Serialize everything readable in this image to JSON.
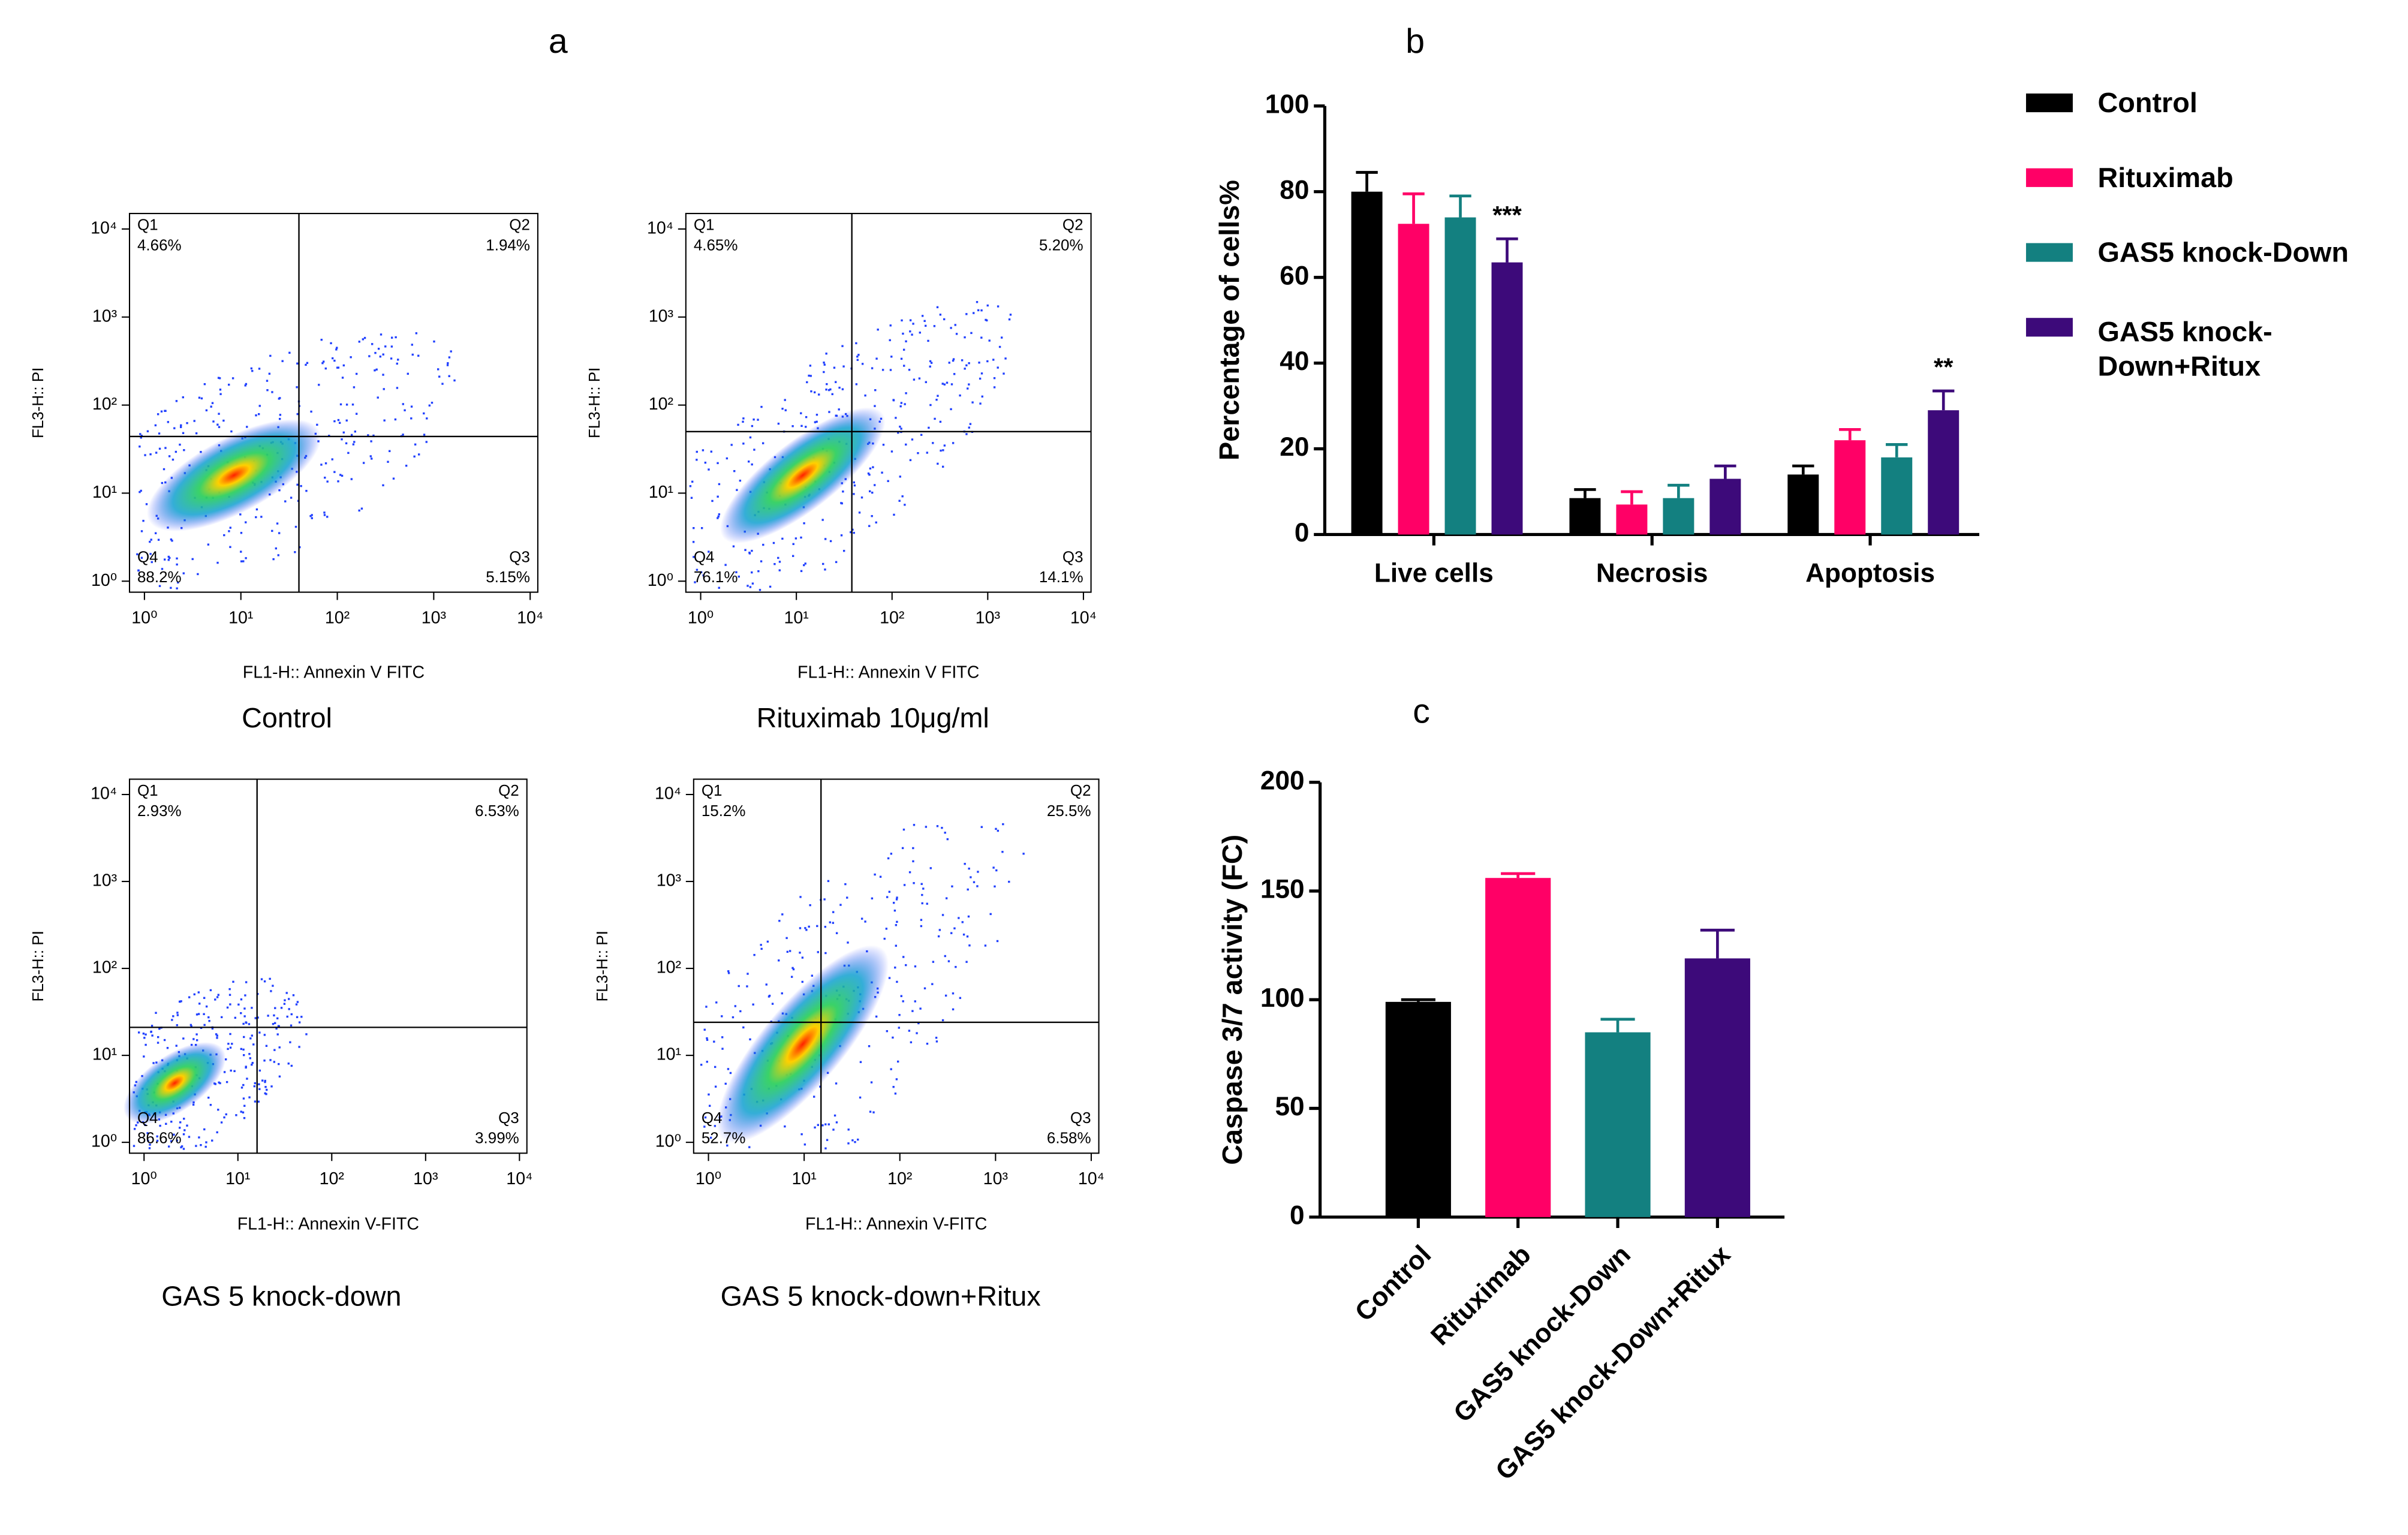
{
  "panel_labels": [
    "a",
    "b",
    "c"
  ],
  "chart_data": [
    {
      "type": "flow",
      "title": "Control",
      "xlabel": "FL1-H:: Annexin V FITC",
      "ylabel": "FL3-H:: PI",
      "log_x": true,
      "log_y": true,
      "xlim": [
        0.7,
        12000
      ],
      "ylim": [
        0.75,
        15000
      ],
      "xticks": [
        {
          "value": 1,
          "label": "10⁰"
        },
        {
          "value": 10,
          "label": "10¹"
        },
        {
          "value": 100,
          "label": "10²"
        },
        {
          "value": 1000,
          "label": "10³"
        },
        {
          "value": 10000,
          "label": "10⁴"
        }
      ],
      "yticks": [
        {
          "value": 1,
          "label": "10⁰"
        },
        {
          "value": 10,
          "label": "10¹"
        },
        {
          "value": 100,
          "label": "10²"
        },
        {
          "value": 1000,
          "label": "10³"
        },
        {
          "value": 10000,
          "label": "10⁴"
        }
      ],
      "x_gate": 40,
      "y_gate": 44,
      "quadrants": [
        {
          "name": "Q1",
          "value": 4.66,
          "label": "4.66%"
        },
        {
          "name": "Q2",
          "value": 1.94,
          "label": "1.94%"
        },
        {
          "name": "Q3",
          "value": 5.15,
          "label": "5.15%"
        },
        {
          "name": "Q4",
          "value": 88.2,
          "label": "88.2%"
        }
      ]
    },
    {
      "type": "flow",
      "title": "Rituximab 10μg/ml",
      "xlabel": "FL1-H:: Annexin V FITC",
      "ylabel": "FL3-H:: PI",
      "log_x": true,
      "log_y": true,
      "xlim": [
        0.7,
        12000
      ],
      "ylim": [
        0.75,
        15000
      ],
      "xticks": [
        {
          "value": 1,
          "label": "10⁰"
        },
        {
          "value": 10,
          "label": "10¹"
        },
        {
          "value": 100,
          "label": "10²"
        },
        {
          "value": 1000,
          "label": "10³"
        },
        {
          "value": 10000,
          "label": "10⁴"
        }
      ],
      "yticks": [
        {
          "value": 1,
          "label": "10⁰"
        },
        {
          "value": 10,
          "label": "10¹"
        },
        {
          "value": 100,
          "label": "10²"
        },
        {
          "value": 1000,
          "label": "10³"
        },
        {
          "value": 10000,
          "label": "10⁴"
        }
      ],
      "x_gate": 38,
      "y_gate": 50,
      "quadrants": [
        {
          "name": "Q1",
          "value": 4.65,
          "label": "4.65%"
        },
        {
          "name": "Q2",
          "value": 5.2,
          "label": "5.20%"
        },
        {
          "name": "Q3",
          "value": 14.1,
          "label": "14.1%"
        },
        {
          "name": "Q4",
          "value": 76.1,
          "label": "76.1%"
        }
      ]
    },
    {
      "type": "flow",
      "title": "GAS 5 knock-down",
      "xlabel": "FL1-H:: Annexin V-FITC",
      "ylabel": "FL3-H:: PI",
      "log_x": true,
      "log_y": true,
      "xlim": [
        0.7,
        12000
      ],
      "ylim": [
        0.75,
        15000
      ],
      "xticks": [
        {
          "value": 1,
          "label": "10⁰"
        },
        {
          "value": 10,
          "label": "10¹"
        },
        {
          "value": 100,
          "label": "10²"
        },
        {
          "value": 1000,
          "label": "10³"
        },
        {
          "value": 10000,
          "label": "10⁴"
        }
      ],
      "yticks": [
        {
          "value": 1,
          "label": "10⁰"
        },
        {
          "value": 10,
          "label": "10¹"
        },
        {
          "value": 100,
          "label": "10²"
        },
        {
          "value": 1000,
          "label": "10³"
        },
        {
          "value": 10000,
          "label": "10⁴"
        }
      ],
      "x_gate": 16,
      "y_gate": 21,
      "quadrants": [
        {
          "name": "Q1",
          "value": 2.93,
          "label": "2.93%"
        },
        {
          "name": "Q2",
          "value": 6.53,
          "label": "6.53%"
        },
        {
          "name": "Q3",
          "value": 3.99,
          "label": "3.99%"
        },
        {
          "name": "Q4",
          "value": 86.6,
          "label": "86.6%"
        }
      ]
    },
    {
      "type": "flow",
      "title": "GAS 5 knock-down+Ritux",
      "xlabel": "FL1-H:: Annexin V-FITC",
      "ylabel": "FL3-H:: PI",
      "log_x": true,
      "log_y": true,
      "xlim": [
        0.7,
        12000
      ],
      "ylim": [
        0.75,
        15000
      ],
      "xticks": [
        {
          "value": 1,
          "label": "10⁰"
        },
        {
          "value": 10,
          "label": "10¹"
        },
        {
          "value": 100,
          "label": "10²"
        },
        {
          "value": 1000,
          "label": "10³"
        },
        {
          "value": 10000,
          "label": "10⁴"
        }
      ],
      "yticks": [
        {
          "value": 1,
          "label": "10⁰"
        },
        {
          "value": 10,
          "label": "10¹"
        },
        {
          "value": 100,
          "label": "10²"
        },
        {
          "value": 1000,
          "label": "10³"
        },
        {
          "value": 10000,
          "label": "10⁴"
        }
      ],
      "x_gate": 15,
      "y_gate": 24,
      "quadrants": [
        {
          "name": "Q1",
          "value": 15.2,
          "label": "15.2%"
        },
        {
          "name": "Q2",
          "value": 25.5,
          "label": "25.5%"
        },
        {
          "name": "Q3",
          "value": 6.58,
          "label": "6.58%"
        },
        {
          "name": "Q4",
          "value": 52.7,
          "label": "52.7%"
        }
      ]
    },
    {
      "type": "grouped_bar",
      "ylabel": "Percentage of cells%",
      "categories": [
        "Live cells",
        "Necrosis",
        "Apoptosis"
      ],
      "ylim": [
        0,
        100
      ],
      "yticks": [
        0,
        20,
        40,
        60,
        80,
        100
      ],
      "series": [
        {
          "name": "Control",
          "color": "#000000",
          "values": [
            80,
            8.5,
            14
          ],
          "errors": [
            4.5,
            2,
            2
          ]
        },
        {
          "name": "Rituximab",
          "color": "#ff0066",
          "values": [
            72.5,
            7,
            22
          ],
          "errors": [
            7,
            3,
            2.5
          ]
        },
        {
          "name": "GAS5 knock-Down",
          "color": "#138080",
          "values": [
            74,
            8.5,
            18
          ],
          "errors": [
            5,
            3,
            3
          ]
        },
        {
          "name": "GAS5 knock-Down+Ritux",
          "color": "#3d0a7a",
          "values": [
            63.5,
            13,
            29
          ],
          "errors": [
            5.5,
            3,
            4.5
          ]
        }
      ],
      "annotations": [
        {
          "text": "***",
          "category": 0,
          "series": 3
        },
        {
          "text": "**",
          "category": 2,
          "series": 3
        }
      ]
    },
    {
      "type": "bar",
      "ylabel": "Caspase 3/7 activity (FC)",
      "categories": [
        "Control",
        "Rituximab",
        "GAS5 knock-Down",
        "GAS5 knock-Down+Ritux"
      ],
      "values": [
        99,
        156,
        85,
        119
      ],
      "errors": [
        1,
        2,
        6,
        13
      ],
      "colors": [
        "#000000",
        "#ff0066",
        "#138080",
        "#3d0a7a"
      ],
      "ylim": [
        0,
        200
      ],
      "yticks": [
        0,
        50,
        100,
        150,
        200
      ]
    }
  ]
}
